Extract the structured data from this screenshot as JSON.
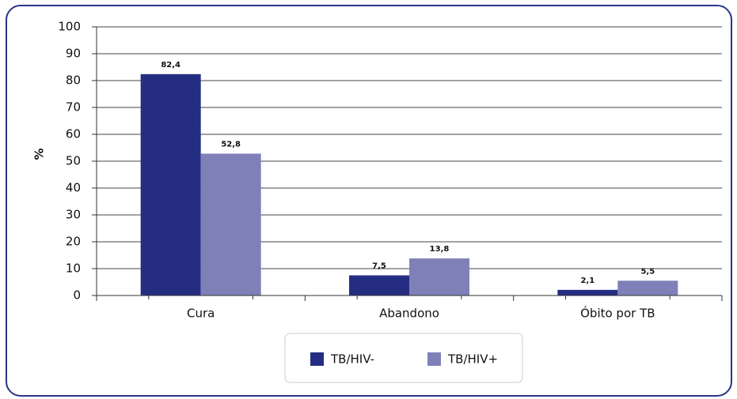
{
  "chart_data": {
    "type": "bar",
    "categories": [
      "Cura",
      "Abandono",
      "Óbito por TB"
    ],
    "y_label": "%",
    "series": [
      {
        "name": "TB/HIV-",
        "color": "#252d82",
        "values": [
          82.4,
          7.5,
          2.1
        ],
        "value_labels": [
          "82,4",
          "7,5",
          "2,1"
        ]
      },
      {
        "name": "TB/HIV+",
        "color": "#8080b8",
        "values": [
          52.8,
          13.8,
          5.5
        ],
        "value_labels": [
          "52,8",
          "13,8",
          "5,5"
        ]
      }
    ],
    "ylim": [
      0,
      100
    ],
    "yticks": [
      0,
      10,
      20,
      30,
      40,
      50,
      60,
      70,
      80,
      90,
      100
    ],
    "grid": true,
    "legend": "bottom"
  }
}
